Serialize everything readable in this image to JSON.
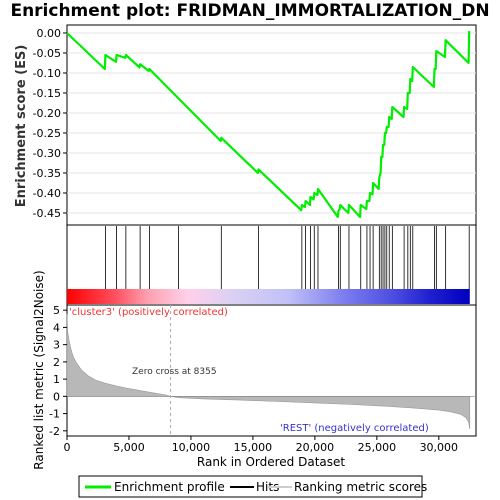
{
  "title": "Enrichment plot: FRIDMAN_IMMORTALIZATION_DN",
  "colors": {
    "enrichment_line": "#00ee00",
    "hits": "#000000",
    "metric_fill": "#b8b8b8",
    "positive_label": "#ee3333",
    "negative_label": "#3333cc",
    "zero_cross_line": "#aaaaaa"
  },
  "chart_data": [
    {
      "type": "line",
      "name": "enrichment-profile",
      "ylabel": "Enrichment score (ES)",
      "xlim": [
        0,
        33000
      ],
      "ylim": [
        -0.48,
        0.02
      ],
      "yticks": [
        0.0,
        -0.05,
        -0.1,
        -0.15,
        -0.2,
        -0.25,
        -0.3,
        -0.35,
        -0.4,
        -0.45
      ],
      "ytick_labels": [
        "0.00",
        "-0.05",
        "-0.10",
        "-0.15",
        "-0.20",
        "-0.25",
        "-0.30",
        "-0.35",
        "-0.40",
        "-0.45"
      ],
      "grid": true,
      "points": [
        [
          0,
          0.0
        ],
        [
          3050,
          -0.09
        ],
        [
          3100,
          -0.055
        ],
        [
          3950,
          -0.072
        ],
        [
          4000,
          -0.055
        ],
        [
          4700,
          -0.062
        ],
        [
          4750,
          -0.055
        ],
        [
          5850,
          -0.086
        ],
        [
          5900,
          -0.078
        ],
        [
          6600,
          -0.095
        ],
        [
          6650,
          -0.09
        ],
        [
          12400,
          -0.27
        ],
        [
          12450,
          -0.262
        ],
        [
          15400,
          -0.35
        ],
        [
          15450,
          -0.341
        ],
        [
          18900,
          -0.443
        ],
        [
          18950,
          -0.43
        ],
        [
          19200,
          -0.435
        ],
        [
          19250,
          -0.42
        ],
        [
          19600,
          -0.43
        ],
        [
          19650,
          -0.41
        ],
        [
          19900,
          -0.416
        ],
        [
          19950,
          -0.4
        ],
        [
          20200,
          -0.405
        ],
        [
          20250,
          -0.39
        ],
        [
          21850,
          -0.46
        ],
        [
          21900,
          -0.445
        ],
        [
          22000,
          -0.44
        ],
        [
          22050,
          -0.43
        ],
        [
          22700,
          -0.45
        ],
        [
          22750,
          -0.43
        ],
        [
          23650,
          -0.46
        ],
        [
          23700,
          -0.43
        ],
        [
          24150,
          -0.44
        ],
        [
          24200,
          -0.42
        ],
        [
          24400,
          -0.42
        ],
        [
          24450,
          -0.4
        ],
        [
          24650,
          -0.403
        ],
        [
          24700,
          -0.375
        ],
        [
          25150,
          -0.39
        ],
        [
          25200,
          -0.36
        ],
        [
          25300,
          -0.35
        ],
        [
          25350,
          -0.31
        ],
        [
          25450,
          -0.31
        ],
        [
          25500,
          -0.28
        ],
        [
          25600,
          -0.28
        ],
        [
          25650,
          -0.25
        ],
        [
          25750,
          -0.25
        ],
        [
          25800,
          -0.235
        ],
        [
          25950,
          -0.235
        ],
        [
          26000,
          -0.21
        ],
        [
          26200,
          -0.215
        ],
        [
          26250,
          -0.185
        ],
        [
          27150,
          -0.21
        ],
        [
          27200,
          -0.185
        ],
        [
          27450,
          -0.19
        ],
        [
          27500,
          -0.15
        ],
        [
          27650,
          -0.15
        ],
        [
          27700,
          -0.115
        ],
        [
          27850,
          -0.12
        ],
        [
          27900,
          -0.085
        ],
        [
          29600,
          -0.135
        ],
        [
          29650,
          -0.09
        ],
        [
          29750,
          -0.09
        ],
        [
          29800,
          -0.045
        ],
        [
          30500,
          -0.06
        ],
        [
          30550,
          -0.018
        ],
        [
          32400,
          -0.075
        ],
        [
          32450,
          0.005
        ]
      ]
    },
    {
      "type": "scatter",
      "name": "hits",
      "x": [
        3100,
        4000,
        4750,
        5900,
        6650,
        9000,
        12450,
        15450,
        18950,
        19250,
        19650,
        19950,
        20250,
        21900,
        22050,
        22750,
        23700,
        24200,
        24450,
        24700,
        25200,
        25350,
        25500,
        25650,
        25800,
        26000,
        26250,
        27200,
        27500,
        27700,
        27900,
        29650,
        29800,
        30550,
        32450
      ]
    },
    {
      "type": "area",
      "name": "ranked-list-metric",
      "xlabel": "Rank in Ordered Dataset",
      "ylabel": "Ranked list metric (Signal2Noise)",
      "xlim": [
        0,
        33000
      ],
      "ylim": [
        -2.3,
        5.3
      ],
      "xticks": [
        0,
        5000,
        10000,
        15000,
        20000,
        25000,
        30000
      ],
      "xtick_labels": [
        "0",
        "5,000",
        "10,000",
        "15,000",
        "20,000",
        "25,000",
        "30,000"
      ],
      "yticks": [
        5,
        4,
        3,
        2,
        1,
        0,
        -1,
        -2
      ],
      "ytick_labels": [
        "5",
        "4",
        "3",
        "2",
        "1",
        "0",
        "-1",
        "-2"
      ],
      "x": [
        0,
        50,
        150,
        300,
        500,
        800,
        1200,
        1700,
        2300,
        3000,
        4000,
        5000,
        6000,
        7000,
        8000,
        8355,
        9000,
        11000,
        14000,
        17000,
        20000,
        23000,
        26000,
        28000,
        30000,
        31000,
        31800,
        32200,
        32400,
        32500
      ],
      "values": [
        4.8,
        3.8,
        3.3,
        2.8,
        2.3,
        1.9,
        1.5,
        1.2,
        0.95,
        0.78,
        0.6,
        0.45,
        0.32,
        0.2,
        0.08,
        0.0,
        -0.08,
        -0.15,
        -0.22,
        -0.3,
        -0.38,
        -0.47,
        -0.58,
        -0.68,
        -0.8,
        -0.9,
        -1.05,
        -1.25,
        -1.5,
        -1.9
      ],
      "zero_cross": 8355,
      "zero_cross_label": "Zero cross at 8355",
      "positive_label": "'cluster3' (positively correlated)",
      "negative_label": "'REST' (negatively correlated)"
    }
  ],
  "legend": {
    "items": [
      {
        "label": "Enrichment profile",
        "color": "#00ee00"
      },
      {
        "label": "Hits",
        "color": "#000000"
      },
      {
        "label": "Ranking metric scores",
        "color": "#cccccc"
      }
    ]
  }
}
